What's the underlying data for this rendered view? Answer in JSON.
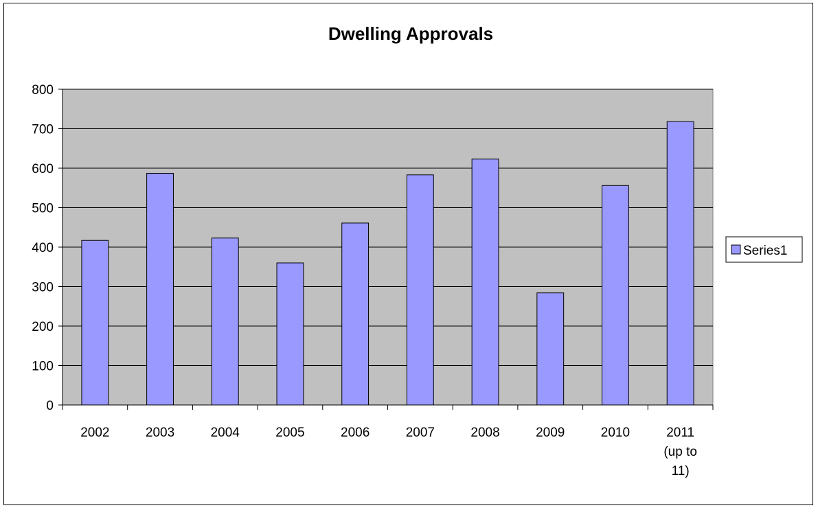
{
  "chart_data": {
    "type": "bar",
    "title": "Dwelling Approvals",
    "xlabel": "",
    "ylabel": "",
    "categories": [
      "2002",
      "2003",
      "2004",
      "2005",
      "2006",
      "2007",
      "2008",
      "2009",
      "2010",
      "2011\n(up to\n11)"
    ],
    "series": [
      {
        "name": "Series1",
        "values": [
          417,
          587,
          423,
          360,
          461,
          583,
          623,
          284,
          556,
          718
        ]
      }
    ],
    "ylim": [
      0,
      800
    ],
    "yticks": [
      0,
      100,
      200,
      300,
      400,
      500,
      600,
      700,
      800
    ],
    "grid": true,
    "legend": "right",
    "colors": {
      "bar_fill": "#9999ff",
      "bar_stroke": "#000000",
      "plot_background": "#c0c0c0",
      "gridline": "#000000"
    }
  }
}
